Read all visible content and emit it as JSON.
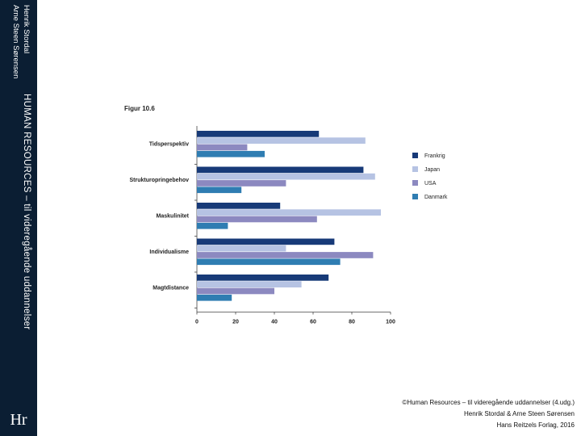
{
  "sidebar": {
    "authors": [
      "Henrik Stordal",
      "Arne Steen Sørensen"
    ],
    "book_title": "HUMAN RESOURCES – til videregående uddannelser",
    "logo_text": "Hr"
  },
  "figure_label": "Figur 10.6",
  "footer": {
    "line1": "©Human Resources – til videregående uddannelser (4.udg.)",
    "line2": "Henrik Stordal & Arne Steen Sørensen",
    "line3": "Hans Reitzels Forlag, 2016"
  },
  "colors": {
    "sidebar_bg": "#0b1e33",
    "series": [
      "#173a78",
      "#b6c3e3",
      "#8c89c0",
      "#2f7db2"
    ]
  },
  "chart_data": {
    "type": "bar",
    "orientation": "horizontal",
    "title": "",
    "xlabel": "",
    "ylabel": "",
    "categories": [
      "Tidsperspektiv",
      "Strukturopringebehov",
      "Maskulinitet",
      "Individualisme",
      "Magtdistance"
    ],
    "series": [
      {
        "name": "Frankrig",
        "values": [
          63,
          86,
          43,
          71,
          68
        ]
      },
      {
        "name": "Japan",
        "values": [
          87,
          92,
          95,
          46,
          54
        ]
      },
      {
        "name": "USA",
        "values": [
          26,
          46,
          62,
          91,
          40
        ]
      },
      {
        "name": "Danmark",
        "values": [
          35,
          23,
          16,
          74,
          18
        ]
      }
    ],
    "xlim": [
      0,
      100
    ],
    "xticks": [
      0,
      20,
      40,
      60,
      80,
      100
    ],
    "grid": false,
    "legend_position": "right"
  }
}
